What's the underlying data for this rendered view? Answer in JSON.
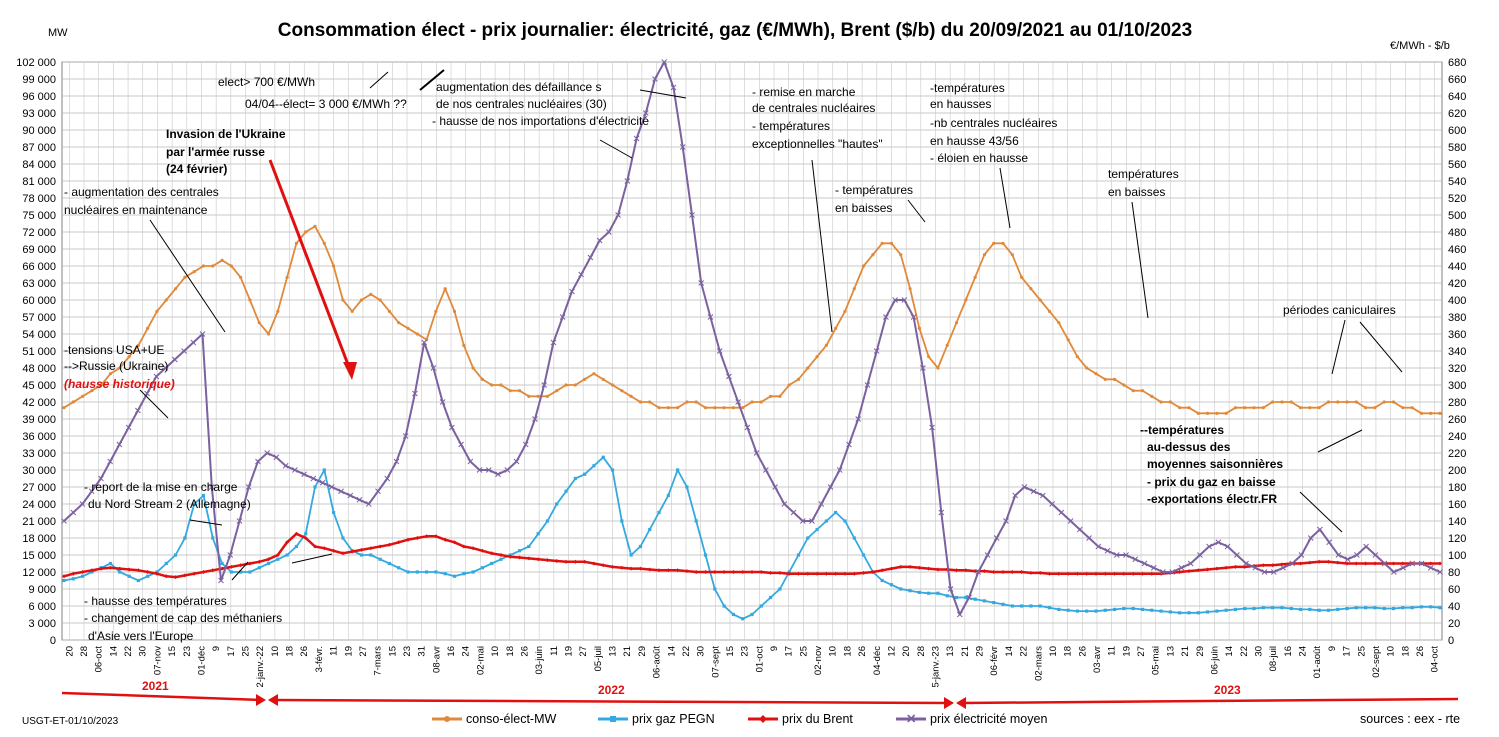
{
  "chart_data": {
    "type": "line",
    "title": "Consommation élect - prix journalier: électricité, gaz (€/MWh), Brent ($/b) du 20/09/2021  au  01/10/2023",
    "left_axis_unit": "MW",
    "right_axis_unit": "€/MWh - $/b",
    "left_axis": {
      "min": 0,
      "max": 102000,
      "step": 3000
    },
    "right_axis": {
      "min": 0,
      "max": 680,
      "step": 20
    },
    "grid": true,
    "x_ticks": [
      "20",
      "28",
      "06-oct",
      "14",
      "22",
      "30",
      "07-nov",
      "15",
      "23",
      "01-déc",
      "9",
      "17",
      "25",
      "2-janv.-22",
      "10",
      "18",
      "26",
      "3-févr.",
      "11",
      "19",
      "27",
      "7-mars",
      "15",
      "23",
      "31",
      "08-avr",
      "16",
      "24",
      "02-mai",
      "10",
      "18",
      "26",
      "03-juin",
      "11",
      "19",
      "27",
      "05-juil",
      "13",
      "21",
      "29",
      "06-août",
      "14",
      "22",
      "30",
      "07-sept",
      "15",
      "23",
      "01-oct",
      "9",
      "17",
      "25",
      "02-nov",
      "10",
      "18",
      "26",
      "04-déc",
      "12",
      "20",
      "28",
      "5-janv.-23",
      "13",
      "21",
      "29",
      "06-févr",
      "14",
      "22",
      "02-mars",
      "10",
      "18",
      "26",
      "03-avr",
      "11",
      "19",
      "27",
      "05-mai",
      "13",
      "21",
      "29",
      "06-juin",
      "14",
      "22",
      "30",
      "08-juil",
      "16",
      "24",
      "01-août",
      "9",
      "17",
      "25",
      "02-sept",
      "10",
      "18",
      "26",
      "04-oct"
    ],
    "series": [
      {
        "name": "conso-élect-MW",
        "axis": "left",
        "color": "#e0893a",
        "marker": "circle",
        "values": [
          41000,
          42000,
          43000,
          44000,
          45000,
          47000,
          48000,
          50000,
          52000,
          55000,
          58000,
          60000,
          62000,
          64000,
          65000,
          66000,
          66000,
          67000,
          66000,
          64000,
          60000,
          56000,
          54000,
          58000,
          64000,
          70000,
          72000,
          73000,
          70000,
          66000,
          60000,
          58000,
          60000,
          61000,
          60000,
          58000,
          56000,
          55000,
          54000,
          53000,
          58000,
          62000,
          58000,
          52000,
          48000,
          46000,
          45000,
          45000,
          44000,
          44000,
          43000,
          43000,
          43000,
          44000,
          45000,
          45000,
          46000,
          47000,
          46000,
          45000,
          44000,
          43000,
          42000,
          42000,
          41000,
          41000,
          41000,
          42000,
          42000,
          41000,
          41000,
          41000,
          41000,
          41000,
          42000,
          42000,
          43000,
          43000,
          45000,
          46000,
          48000,
          50000,
          52000,
          55000,
          58000,
          62000,
          66000,
          68000,
          70000,
          70000,
          68000,
          62000,
          55000,
          50000,
          48000,
          52000,
          56000,
          60000,
          64000,
          68000,
          70000,
          70000,
          68000,
          64000,
          62000,
          60000,
          58000,
          56000,
          53000,
          50000,
          48000,
          47000,
          46000,
          46000,
          45000,
          44000,
          44000,
          43000,
          42000,
          42000,
          41000,
          41000,
          40000,
          40000,
          40000,
          40000,
          41000,
          41000,
          41000,
          41000,
          42000,
          42000,
          42000,
          41000,
          41000,
          41000,
          42000,
          42000,
          42000,
          42000,
          41000,
          41000,
          42000,
          42000,
          41000,
          41000,
          40000,
          40000,
          40000
        ]
      },
      {
        "name": "prix gaz PEGN",
        "axis": "right",
        "color": "#33a9e0",
        "marker": "square",
        "values": [
          70,
          72,
          75,
          80,
          85,
          90,
          80,
          75,
          70,
          75,
          80,
          90,
          100,
          120,
          160,
          170,
          120,
          90,
          80,
          80,
          80,
          85,
          90,
          95,
          100,
          110,
          125,
          180,
          200,
          150,
          120,
          105,
          100,
          100,
          95,
          90,
          85,
          80,
          80,
          80,
          80,
          78,
          75,
          78,
          80,
          85,
          90,
          95,
          100,
          105,
          110,
          125,
          140,
          160,
          175,
          190,
          195,
          205,
          215,
          200,
          140,
          100,
          110,
          130,
          150,
          170,
          200,
          180,
          140,
          100,
          60,
          40,
          30,
          25,
          30,
          40,
          50,
          60,
          80,
          100,
          120,
          130,
          140,
          150,
          140,
          120,
          100,
          80,
          70,
          65,
          60,
          58,
          56,
          55,
          55,
          52,
          50,
          50,
          48,
          46,
          44,
          42,
          40,
          40,
          40,
          40,
          38,
          36,
          35,
          34,
          34,
          34,
          35,
          36,
          37,
          37,
          36,
          35,
          34,
          33,
          32,
          32,
          32,
          33,
          34,
          35,
          36,
          37,
          37,
          38,
          38,
          38,
          37,
          36,
          36,
          35,
          35,
          36,
          37,
          38,
          38,
          38,
          37,
          37,
          38,
          38,
          39,
          39,
          38
        ]
      },
      {
        "name": "prix du Brent",
        "axis": "right",
        "color": "#e01010",
        "marker": "diamond",
        "values": [
          75,
          78,
          80,
          82,
          84,
          85,
          84,
          83,
          82,
          80,
          78,
          75,
          74,
          76,
          78,
          80,
          82,
          84,
          86,
          88,
          90,
          92,
          95,
          100,
          115,
          125,
          120,
          110,
          108,
          105,
          102,
          104,
          106,
          108,
          110,
          112,
          115,
          118,
          120,
          122,
          122,
          118,
          115,
          110,
          108,
          105,
          102,
          100,
          98,
          97,
          96,
          95,
          94,
          93,
          92,
          92,
          92,
          90,
          88,
          86,
          85,
          84,
          84,
          83,
          82,
          82,
          82,
          81,
          80,
          80,
          80,
          80,
          80,
          80,
          80,
          80,
          79,
          79,
          78,
          78,
          78,
          78,
          78,
          78,
          78,
          78,
          79,
          80,
          82,
          84,
          86,
          86,
          85,
          84,
          83,
          83,
          82,
          82,
          81,
          81,
          80,
          80,
          80,
          80,
          79,
          79,
          78,
          78,
          78,
          78,
          78,
          78,
          78,
          78,
          78,
          78,
          78,
          78,
          78,
          79,
          80,
          81,
          82,
          83,
          84,
          85,
          86,
          86,
          87,
          88,
          88,
          89,
          90,
          90,
          91,
          92,
          92,
          91,
          90,
          90,
          90,
          90,
          90,
          90,
          90,
          90,
          90,
          90,
          90
        ]
      },
      {
        "name": "prix électricité moyen",
        "axis": "right",
        "color": "#7b61a0",
        "marker": "x",
        "values": [
          140,
          150,
          160,
          175,
          190,
          210,
          230,
          250,
          270,
          290,
          310,
          320,
          330,
          340,
          350,
          360,
          180,
          70,
          100,
          140,
          180,
          210,
          220,
          215,
          205,
          200,
          195,
          190,
          185,
          180,
          175,
          170,
          165,
          160,
          175,
          190,
          210,
          240,
          290,
          350,
          320,
          280,
          250,
          230,
          210,
          200,
          200,
          195,
          200,
          210,
          230,
          260,
          300,
          350,
          380,
          410,
          430,
          450,
          470,
          480,
          500,
          540,
          590,
          620,
          660,
          700,
          650,
          580,
          500,
          420,
          380,
          340,
          310,
          280,
          250,
          220,
          200,
          180,
          160,
          150,
          140,
          140,
          160,
          180,
          200,
          230,
          260,
          300,
          340,
          380,
          400,
          400,
          380,
          320,
          250,
          150,
          60,
          30,
          50,
          80,
          100,
          120,
          140,
          170,
          180,
          175,
          170,
          160,
          150,
          140,
          130,
          120,
          110,
          105,
          100,
          100,
          95,
          90,
          85,
          80,
          80,
          85,
          90,
          100,
          110,
          115,
          110,
          100,
          90,
          85,
          80,
          80,
          85,
          90,
          100,
          120,
          130,
          115,
          100,
          95,
          100,
          110,
          100,
          90,
          80,
          85,
          90,
          90,
          85,
          80
        ]
      }
    ],
    "annotations": [
      {
        "text": "elect> 700 €/MWh",
        "bold": false
      },
      {
        "text": "04/04--élect= 3 000 €/MWh ??",
        "bold": false
      },
      {
        "text": "augmentation  des défaillance s",
        "bold": false
      },
      {
        "text": "de nos centrales nucléaires (30)",
        "bold": false
      },
      {
        "text": "- hausse de nos importations d'électricité",
        "bold": false
      },
      {
        "text": "- remise en marche",
        "bold": false
      },
      {
        "text": "de centrales nucléaires",
        "bold": false
      },
      {
        "text": "- températures",
        "bold": false
      },
      {
        "text": "exceptionnelles \"hautes\"",
        "bold": false
      },
      {
        "text": "-températures",
        "bold": false
      },
      {
        "text": "en hausses",
        "bold": false
      },
      {
        "text": "-nb centrales nucléaires",
        "bold": false
      },
      {
        "text": "en hausse 43/56",
        "bold": false
      },
      {
        "text": "- éloien en hausse",
        "bold": false
      },
      {
        "text": "Invasion de l'Ukraine",
        "bold": true
      },
      {
        "text": "par l'armée russe",
        "bold": true
      },
      {
        "text": "(24 février)",
        "bold": true
      },
      {
        "text": "-  augmentation  des centrales",
        "bold": false
      },
      {
        "text": "nucléaires en maintenance",
        "bold": false
      },
      {
        "text": "- températures",
        "bold": false
      },
      {
        "text": "en baisses",
        "bold": false
      },
      {
        "text": "températures",
        "bold": false
      },
      {
        "text": "en baisses",
        "bold": false
      },
      {
        "text": "périodes caniculaires",
        "bold": false
      },
      {
        "text": "-tensions USA+UE",
        "bold": false
      },
      {
        "text": "-->Russie (Ukraine)",
        "bold": false
      },
      {
        "text": "(hausse historique)",
        "bold": true
      },
      {
        "text": "--températures",
        "bold": true
      },
      {
        "text": "au-dessus des",
        "bold": true
      },
      {
        "text": "moyennes saisonnières",
        "bold": true
      },
      {
        "text": "- prix du gaz en baisse",
        "bold": true
      },
      {
        "text": "-exportations électr.FR",
        "bold": true
      },
      {
        "text": "- report de la mise en charge",
        "bold": false
      },
      {
        "text": "du Nord Stream 2 (Allemagne)",
        "bold": false
      },
      {
        "text": "- hausse des températures",
        "bold": false
      },
      {
        "text": "- changement de cap des méthaniers",
        "bold": false
      },
      {
        "text": "d'Asie vers l'Europe",
        "bold": false
      }
    ],
    "years": [
      "2021",
      "2022",
      "2023"
    ],
    "footer_left": "USGT-ET-01/10/2023",
    "footer_right": "sources : eex - rte"
  }
}
